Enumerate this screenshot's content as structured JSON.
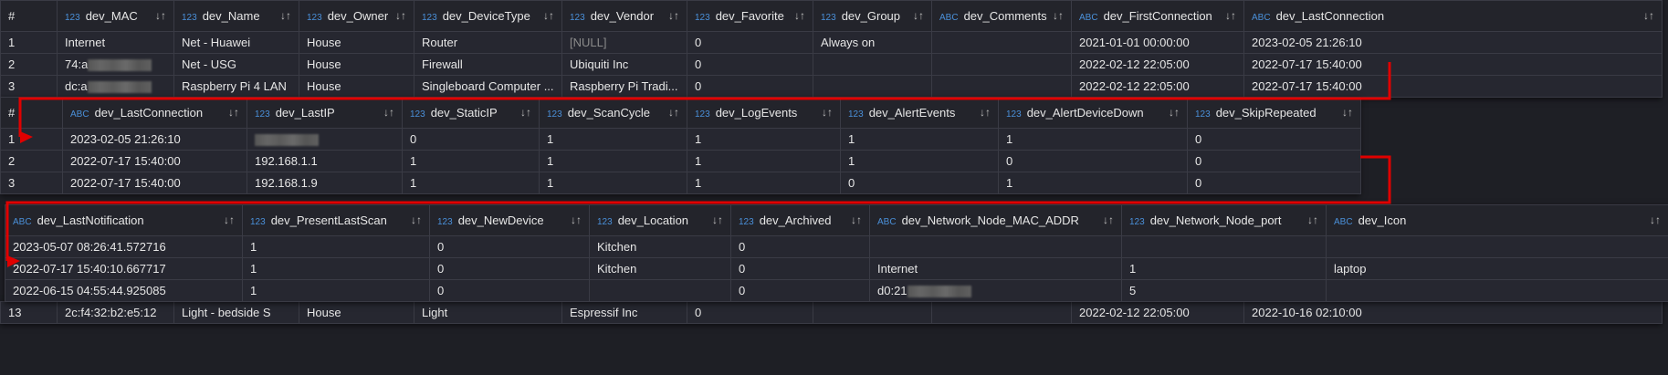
{
  "panel1": {
    "headers": [
      {
        "t": "",
        "n": "#"
      },
      {
        "t": "123",
        "n": "dev_MAC"
      },
      {
        "t": "123",
        "n": "dev_Name"
      },
      {
        "t": "123",
        "n": "dev_Owner"
      },
      {
        "t": "123",
        "n": "dev_DeviceType"
      },
      {
        "t": "123",
        "n": "dev_Vendor"
      },
      {
        "t": "123",
        "n": "dev_Favorite"
      },
      {
        "t": "123",
        "n": "dev_Group"
      },
      {
        "t": "ABC",
        "n": "dev_Comments"
      },
      {
        "t": "ABC",
        "n": "dev_FirstConnection"
      },
      {
        "t": "ABC",
        "n": "dev_LastConnection"
      }
    ],
    "rows": [
      [
        "1",
        "Internet",
        "Net - Huawei",
        "House",
        "Router",
        "[NULL]",
        "0",
        "Always on",
        "",
        "2021-01-01 00:00:00",
        "2023-02-05 21:26:10"
      ],
      [
        "2",
        "74:a",
        "Net - USG",
        "House",
        "Firewall",
        "Ubiquiti Inc",
        "0",
        "",
        "",
        "2022-02-12 22:05:00",
        "2022-07-17 15:40:00"
      ],
      [
        "3",
        "dc:a",
        "Raspberry Pi 4 LAN",
        "House",
        "Singleboard Computer ...",
        "Raspberry Pi Tradi...",
        "0",
        "",
        "",
        "2022-02-12 22:05:00",
        "2022-07-17 15:40:00"
      ]
    ]
  },
  "panel2": {
    "headers": [
      {
        "t": "",
        "n": "#"
      },
      {
        "t": "ABC",
        "n": "dev_LastConnection"
      },
      {
        "t": "123",
        "n": "dev_LastIP"
      },
      {
        "t": "123",
        "n": "dev_StaticIP"
      },
      {
        "t": "123",
        "n": "dev_ScanCycle"
      },
      {
        "t": "123",
        "n": "dev_LogEvents"
      },
      {
        "t": "123",
        "n": "dev_AlertEvents"
      },
      {
        "t": "123",
        "n": "dev_AlertDeviceDown"
      },
      {
        "t": "123",
        "n": "dev_SkipRepeated"
      }
    ],
    "rows": [
      [
        "1",
        "2023-02-05 21:26:10",
        "",
        "0",
        "1",
        "1",
        "1",
        "1",
        "0"
      ],
      [
        "2",
        "2022-07-17 15:40:00",
        "192.168.1.1",
        "1",
        "1",
        "1",
        "1",
        "0",
        "0"
      ],
      [
        "3",
        "2022-07-17 15:40:00",
        "192.168.1.9",
        "1",
        "1",
        "1",
        "0",
        "1",
        "0"
      ]
    ]
  },
  "panel3": {
    "headers": [
      {
        "t": "ABC",
        "n": "dev_LastNotification"
      },
      {
        "t": "123",
        "n": "dev_PresentLastScan"
      },
      {
        "t": "123",
        "n": "dev_NewDevice"
      },
      {
        "t": "123",
        "n": "dev_Location"
      },
      {
        "t": "123",
        "n": "dev_Archived"
      },
      {
        "t": "ABC",
        "n": "dev_Network_Node_MAC_ADDR"
      },
      {
        "t": "123",
        "n": "dev_Network_Node_port"
      },
      {
        "t": "ABC",
        "n": "dev_Icon"
      }
    ],
    "rows": [
      [
        "2023-05-07 08:26:41.572716",
        "1",
        "0",
        "Kitchen",
        "0",
        "",
        "",
        ""
      ],
      [
        "2022-07-17 15:40:10.667717",
        "1",
        "0",
        "Kitchen",
        "0",
        "Internet",
        "1",
        "laptop"
      ],
      [
        "2022-06-15 04:55:44.925085",
        "1",
        "0",
        "",
        "0",
        "d0:21",
        "5",
        ""
      ]
    ]
  },
  "bottom_row": [
    "13",
    "2c:f4:32:b2:e5:12",
    "Light - bedside S",
    "House",
    "Light",
    "Espressif Inc",
    "0",
    "",
    "",
    "2022-02-12 22:05:00",
    "2022-10-16 02:10:00"
  ],
  "colors": {
    "type_badge": "#4a90d9",
    "arrow": "#e00000",
    "background": "#262730"
  }
}
